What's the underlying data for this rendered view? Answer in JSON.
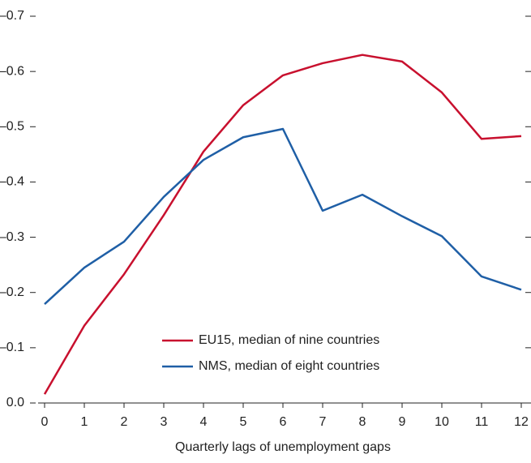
{
  "chart_data": {
    "type": "line",
    "x_label": "Quarterly lags of unemployment gaps",
    "x": [
      0,
      1,
      2,
      3,
      4,
      5,
      6,
      7,
      8,
      9,
      10,
      11,
      12
    ],
    "xlim": [
      0,
      12
    ],
    "xticks": [
      0,
      1,
      2,
      3,
      4,
      5,
      6,
      7,
      8,
      9,
      10,
      11,
      12
    ],
    "ylim": [
      0,
      -0.7
    ],
    "yticks": [
      {
        "value": 0,
        "label": "0.0"
      },
      {
        "value": -0.1,
        "label": "–0.1"
      },
      {
        "value": -0.2,
        "label": "–0.2"
      },
      {
        "value": -0.3,
        "label": "–0.3"
      },
      {
        "value": -0.4,
        "label": "–0.4"
      },
      {
        "value": -0.5,
        "label": "–0.5"
      },
      {
        "value": -0.6,
        "label": "–0.6"
      },
      {
        "value": -0.7,
        "label": "–0.7"
      }
    ],
    "grid": false,
    "legend": "lower center",
    "series": [
      {
        "name": "EU15, median of nine countries",
        "color": "#c8102e",
        "values": [
          -0.016,
          -0.14,
          -0.233,
          -0.34,
          -0.455,
          -0.539,
          -0.593,
          -0.615,
          -0.63,
          -0.618,
          -0.562,
          -0.478,
          -0.483
        ]
      },
      {
        "name": "NMS, median of eight countries",
        "color": "#1f5fa6",
        "values": [
          -0.179,
          -0.245,
          -0.292,
          -0.373,
          -0.44,
          -0.481,
          -0.496,
          -0.348,
          -0.377,
          -0.338,
          -0.302,
          -0.229,
          -0.205
        ]
      }
    ]
  }
}
